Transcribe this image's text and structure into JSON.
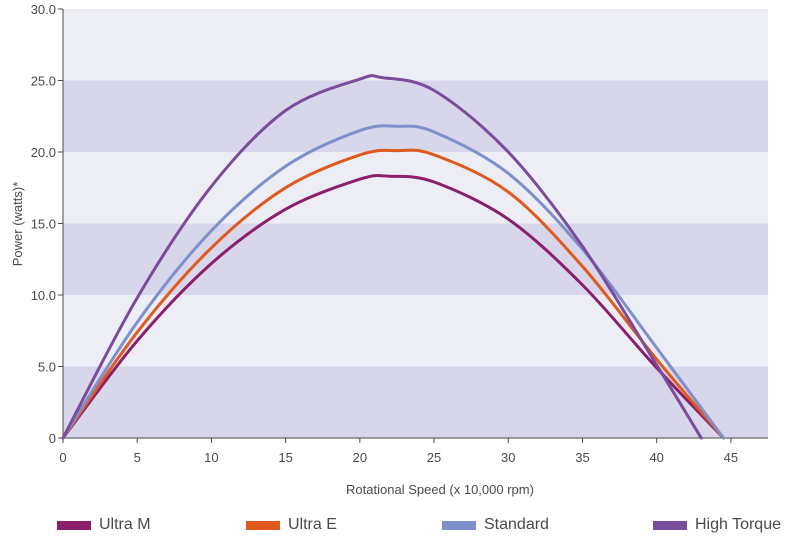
{
  "chart_data": {
    "type": "line",
    "title": "",
    "xlabel": "Rotational Speed (x 10,000 rpm)",
    "ylabel": "Power (watts)*",
    "xlim": [
      0,
      47.5
    ],
    "ylim": [
      0,
      30
    ],
    "x_ticks": [
      "0",
      "5",
      "10",
      "15",
      "20",
      "25",
      "30",
      "35",
      "40",
      "45"
    ],
    "y_ticks": [
      "0",
      "5.0",
      "10.0",
      "15.0",
      "20.0",
      "25.0",
      "30.0"
    ],
    "band_colors": [
      "#d8d6ea",
      "#ededf6"
    ],
    "legend_position": "bottom",
    "series": [
      {
        "name": "Ultra M",
        "color": "#8b1f6c",
        "x": [
          0,
          5,
          10,
          15,
          20,
          22,
          25,
          30,
          35,
          40,
          44.5
        ],
        "y": [
          0,
          6.8,
          12.2,
          16.0,
          18.1,
          18.3,
          17.9,
          15.3,
          10.7,
          4.9,
          0
        ]
      },
      {
        "name": "Ultra E",
        "color": "#e05a1e",
        "x": [
          0,
          5,
          10,
          15,
          20,
          22.5,
          25,
          30,
          35,
          40,
          44.5
        ],
        "y": [
          0,
          7.4,
          13.3,
          17.5,
          19.8,
          20.1,
          19.8,
          17.2,
          12.0,
          5.5,
          0
        ]
      },
      {
        "name": "Standard",
        "color": "#7e8fcb",
        "x": [
          0,
          5,
          10,
          15,
          20,
          22.5,
          25,
          30,
          35,
          40,
          44.5
        ],
        "y": [
          0,
          8.1,
          14.5,
          19.0,
          21.5,
          21.8,
          21.4,
          18.5,
          13.2,
          6.3,
          0
        ]
      },
      {
        "name": "High Torque",
        "color": "#7b4b9c",
        "x": [
          0,
          5,
          10,
          15,
          20,
          21.5,
          25,
          30,
          35,
          40,
          43
        ],
        "y": [
          0,
          9.8,
          17.6,
          22.9,
          25.1,
          25.2,
          24.3,
          20.0,
          13.4,
          5.1,
          0
        ]
      }
    ]
  }
}
